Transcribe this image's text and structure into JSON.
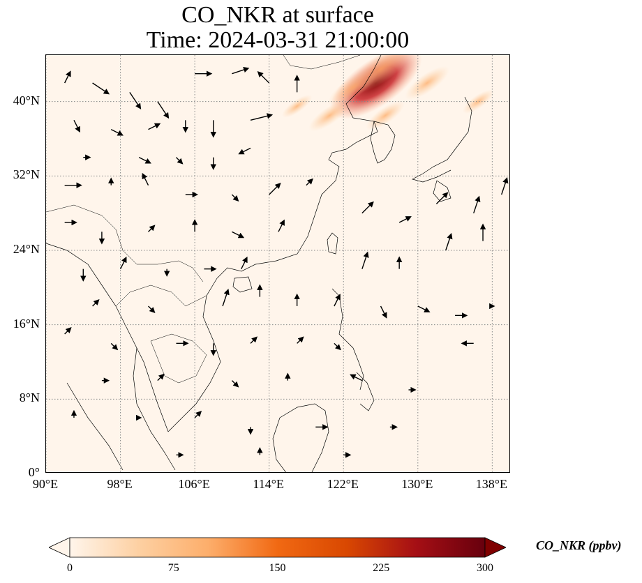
{
  "title": {
    "line1": "CO_NKR at surface",
    "line2": "Time: 2024-03-31 21:00:00"
  },
  "map": {
    "lon_range": [
      90,
      140
    ],
    "lat_range": [
      0,
      45
    ],
    "lon_ticks": [
      {
        "value": 90,
        "label": "90°E"
      },
      {
        "value": 98,
        "label": "98°E"
      },
      {
        "value": 106,
        "label": "106°E"
      },
      {
        "value": 114,
        "label": "114°E"
      },
      {
        "value": 122,
        "label": "122°E"
      },
      {
        "value": 130,
        "label": "130°E"
      },
      {
        "value": 138,
        "label": "138°E"
      }
    ],
    "lat_ticks": [
      {
        "value": 0,
        "label": "0°"
      },
      {
        "value": 8,
        "label": "8°N"
      },
      {
        "value": 16,
        "label": "16°N"
      },
      {
        "value": 24,
        "label": "24°N"
      },
      {
        "value": 32,
        "label": "32°N"
      },
      {
        "value": 40,
        "label": "40°N"
      }
    ],
    "gridlines": true,
    "background_color": "#fff5eb",
    "plume": {
      "description_values_ppbv": [
        {
          "lon": 125.5,
          "lat": 42.0,
          "value": 300
        },
        {
          "lon": 126.0,
          "lat": 43.5,
          "value": 160
        },
        {
          "lon": 123.0,
          "lat": 41.5,
          "value": 110
        },
        {
          "lon": 120.5,
          "lat": 38.5,
          "value": 80
        },
        {
          "lon": 126.5,
          "lat": 38.5,
          "value": 70
        },
        {
          "lon": 131.0,
          "lat": 42.0,
          "value": 90
        },
        {
          "lon": 136.5,
          "lat": 40.0,
          "value": 45
        },
        {
          "lon": 117.0,
          "lat": 39.5,
          "value": 40
        }
      ]
    },
    "wind_vectors": [
      {
        "lon": 92,
        "lat": 42,
        "u": 1,
        "v": 2
      },
      {
        "lon": 95,
        "lat": 42,
        "u": 3,
        "v": -2
      },
      {
        "lon": 99,
        "lat": 41,
        "u": 2,
        "v": -3
      },
      {
        "lon": 102,
        "lat": 40,
        "u": 2,
        "v": -3
      },
      {
        "lon": 106,
        "lat": 43,
        "u": 3,
        "v": 0
      },
      {
        "lon": 110,
        "lat": 43,
        "u": 3,
        "v": 1
      },
      {
        "lon": 114,
        "lat": 42,
        "u": -2,
        "v": 2
      },
      {
        "lon": 117,
        "lat": 41,
        "u": 0,
        "v": 3
      },
      {
        "lon": 93,
        "lat": 38,
        "u": 1,
        "v": -2
      },
      {
        "lon": 97,
        "lat": 37,
        "u": 2,
        "v": -1
      },
      {
        "lon": 101,
        "lat": 37,
        "u": 2,
        "v": 1
      },
      {
        "lon": 105,
        "lat": 38,
        "u": 0,
        "v": -2
      },
      {
        "lon": 108,
        "lat": 38,
        "u": 0,
        "v": -3
      },
      {
        "lon": 112,
        "lat": 38,
        "u": 4,
        "v": 1
      },
      {
        "lon": 94,
        "lat": 34,
        "u": 1,
        "v": 0
      },
      {
        "lon": 100,
        "lat": 34,
        "u": 2,
        "v": -1
      },
      {
        "lon": 104,
        "lat": 34,
        "u": 1,
        "v": -1
      },
      {
        "lon": 108,
        "lat": 34,
        "u": 0,
        "v": -2
      },
      {
        "lon": 112,
        "lat": 35,
        "u": -2,
        "v": -1
      },
      {
        "lon": 92,
        "lat": 31,
        "u": 3,
        "v": 0
      },
      {
        "lon": 97,
        "lat": 31,
        "u": 0,
        "v": 1
      },
      {
        "lon": 101,
        "lat": 31,
        "u": -1,
        "v": 2
      },
      {
        "lon": 105,
        "lat": 30,
        "u": 2,
        "v": 0
      },
      {
        "lon": 110,
        "lat": 30,
        "u": 1,
        "v": -1
      },
      {
        "lon": 114,
        "lat": 30,
        "u": 2,
        "v": 2
      },
      {
        "lon": 118,
        "lat": 31,
        "u": 1,
        "v": 1
      },
      {
        "lon": 92,
        "lat": 27,
        "u": 2,
        "v": 0
      },
      {
        "lon": 96,
        "lat": 26,
        "u": 0,
        "v": -2
      },
      {
        "lon": 101,
        "lat": 26,
        "u": 1,
        "v": 1
      },
      {
        "lon": 106,
        "lat": 26,
        "u": 0,
        "v": 2
      },
      {
        "lon": 110,
        "lat": 26,
        "u": 2,
        "v": -1
      },
      {
        "lon": 115,
        "lat": 26,
        "u": 1,
        "v": 2
      },
      {
        "lon": 124,
        "lat": 28,
        "u": 2,
        "v": 2
      },
      {
        "lon": 128,
        "lat": 27,
        "u": 2,
        "v": 1
      },
      {
        "lon": 132,
        "lat": 29,
        "u": 2,
        "v": 2
      },
      {
        "lon": 136,
        "lat": 28,
        "u": 1,
        "v": 3
      },
      {
        "lon": 139,
        "lat": 30,
        "u": 1,
        "v": 3
      },
      {
        "lon": 94,
        "lat": 22,
        "u": 0,
        "v": -2
      },
      {
        "lon": 98,
        "lat": 22,
        "u": 1,
        "v": 2
      },
      {
        "lon": 103,
        "lat": 22,
        "u": 0,
        "v": -1
      },
      {
        "lon": 107,
        "lat": 22,
        "u": 2,
        "v": 0
      },
      {
        "lon": 111,
        "lat": 22,
        "u": 1,
        "v": 2
      },
      {
        "lon": 124,
        "lat": 22,
        "u": 1,
        "v": 3
      },
      {
        "lon": 128,
        "lat": 22,
        "u": 0,
        "v": 2
      },
      {
        "lon": 133,
        "lat": 24,
        "u": 1,
        "v": 3
      },
      {
        "lon": 137,
        "lat": 25,
        "u": 0,
        "v": 3
      },
      {
        "lon": 95,
        "lat": 18,
        "u": 1,
        "v": 1
      },
      {
        "lon": 101,
        "lat": 18,
        "u": 1,
        "v": -1
      },
      {
        "lon": 109,
        "lat": 18,
        "u": 1,
        "v": 3
      },
      {
        "lon": 113,
        "lat": 19,
        "u": 0,
        "v": 2
      },
      {
        "lon": 117,
        "lat": 18,
        "u": 0,
        "v": 2
      },
      {
        "lon": 121,
        "lat": 18,
        "u": 1,
        "v": 2
      },
      {
        "lon": 126,
        "lat": 18,
        "u": 1,
        "v": -2
      },
      {
        "lon": 130,
        "lat": 18,
        "u": 2,
        "v": -1
      },
      {
        "lon": 134,
        "lat": 17,
        "u": 2,
        "v": 0
      },
      {
        "lon": 138,
        "lat": 18,
        "u": 0,
        "v": 0
      },
      {
        "lon": 92,
        "lat": 15,
        "u": 1,
        "v": 1
      },
      {
        "lon": 97,
        "lat": 14,
        "u": 1,
        "v": -1
      },
      {
        "lon": 104,
        "lat": 14,
        "u": 2,
        "v": 0
      },
      {
        "lon": 108,
        "lat": 14,
        "u": 0,
        "v": -2
      },
      {
        "lon": 112,
        "lat": 14,
        "u": 1,
        "v": 1
      },
      {
        "lon": 117,
        "lat": 14,
        "u": 1,
        "v": 1
      },
      {
        "lon": 121,
        "lat": 14,
        "u": 1,
        "v": -1
      },
      {
        "lon": 136,
        "lat": 14,
        "u": -2,
        "v": 0
      },
      {
        "lon": 96,
        "lat": 10,
        "u": 1,
        "v": 0
      },
      {
        "lon": 102,
        "lat": 10,
        "u": 1,
        "v": 1
      },
      {
        "lon": 110,
        "lat": 10,
        "u": 1,
        "v": -1
      },
      {
        "lon": 116,
        "lat": 10,
        "u": 0,
        "v": 1
      },
      {
        "lon": 124,
        "lat": 10,
        "u": -2,
        "v": 1
      },
      {
        "lon": 129,
        "lat": 9,
        "u": 1,
        "v": 0
      },
      {
        "lon": 93,
        "lat": 6,
        "u": 0,
        "v": 1
      },
      {
        "lon": 100,
        "lat": 6,
        "u": 0,
        "v": 0
      },
      {
        "lon": 106,
        "lat": 6,
        "u": 1,
        "v": 1
      },
      {
        "lon": 112,
        "lat": 5,
        "u": 0,
        "v": -1
      },
      {
        "lon": 119,
        "lat": 5,
        "u": 2,
        "v": 0
      },
      {
        "lon": 127,
        "lat": 5,
        "u": 1,
        "v": 0
      },
      {
        "lon": 104,
        "lat": 2,
        "u": 1,
        "v": 0
      },
      {
        "lon": 113,
        "lat": 2,
        "u": 0,
        "v": 1
      },
      {
        "lon": 122,
        "lat": 2,
        "u": 1,
        "v": 0
      }
    ]
  },
  "colorbar": {
    "label": "CO_NKR (ppbv)",
    "range": [
      0,
      300
    ],
    "ticks": [
      "0",
      "75",
      "150",
      "225",
      "300"
    ],
    "colors": [
      "#fff5eb",
      "#fdd0a2",
      "#fdae6b",
      "#f16913",
      "#d94801",
      "#a50f15",
      "#67000d"
    ],
    "extend": "both"
  }
}
